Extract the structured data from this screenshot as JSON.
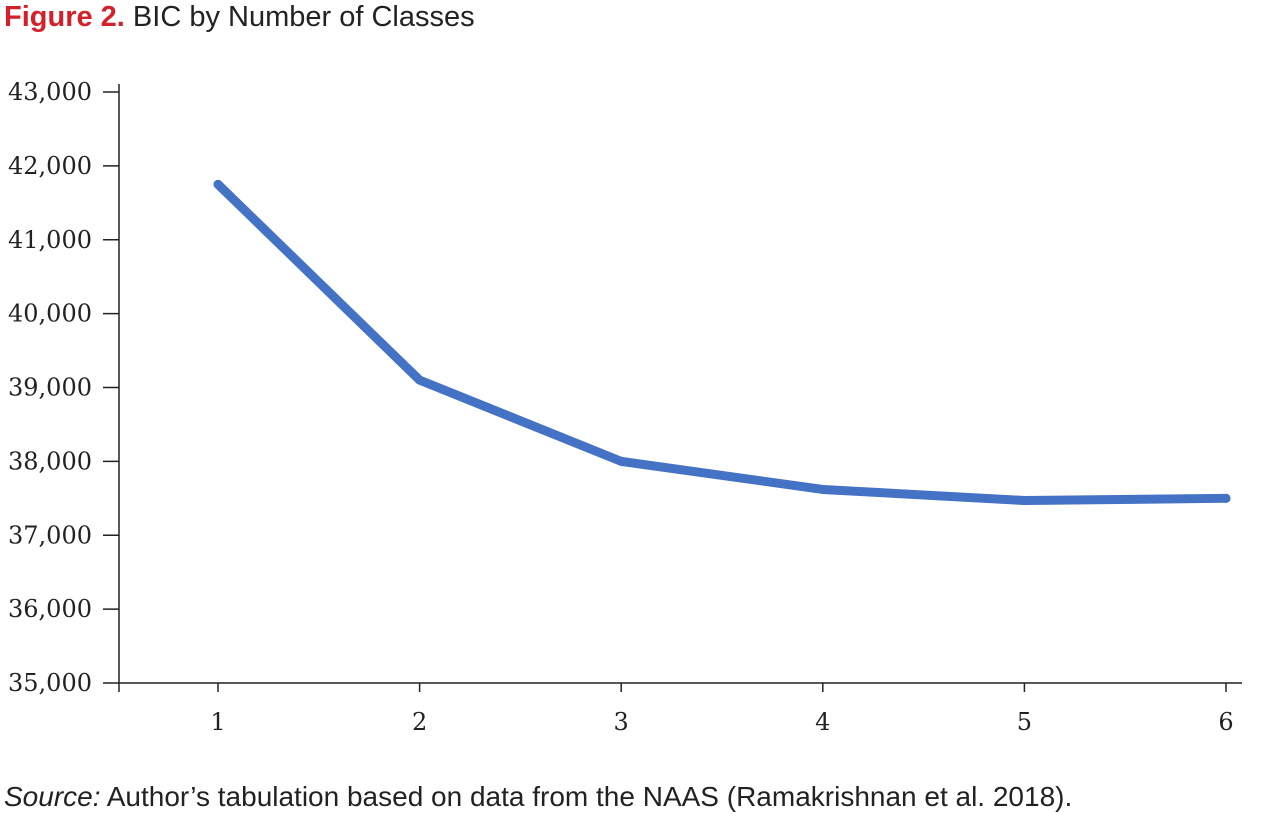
{
  "figure": {
    "label": "Figure 2.",
    "title": "BIC by Number of Classes"
  },
  "source": {
    "label": "Source:",
    "text": "Author’s tabulation based on data from the NAAS (Ramakrishnan et al. 2018)."
  },
  "colors": {
    "label_red": "#d4202a",
    "line_blue": "#4472c4",
    "axis": "#222222"
  },
  "chart_data": {
    "type": "line",
    "title": "BIC by Number of Classes",
    "xlabel": "",
    "ylabel": "",
    "x": [
      1,
      2,
      3,
      4,
      5,
      6
    ],
    "series": [
      {
        "values": [
          41750,
          39100,
          38000,
          37620,
          37470,
          37500
        ]
      }
    ],
    "ylim": [
      35000,
      43000
    ],
    "yticks": [
      35000,
      36000,
      37000,
      38000,
      39000,
      40000,
      41000,
      42000,
      43000
    ],
    "ytick_labels": [
      "35,000",
      "36,000",
      "37,000",
      "38,000",
      "39,000",
      "40,000",
      "41,000",
      "42,000",
      "43,000"
    ],
    "xticks": [
      1,
      2,
      3,
      4,
      5,
      6
    ],
    "xtick_labels": [
      "1",
      "2",
      "3",
      "4",
      "5",
      "6"
    ],
    "grid": false,
    "legend": "none"
  }
}
